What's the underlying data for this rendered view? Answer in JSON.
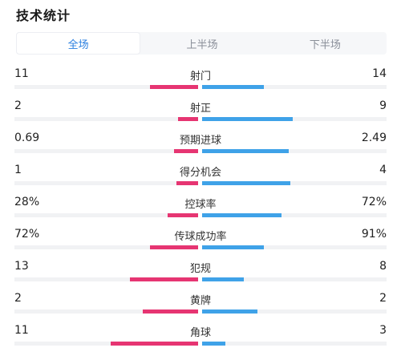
{
  "title": "技术统计",
  "tabs": [
    {
      "label": "全场",
      "active": true
    },
    {
      "label": "上半场",
      "active": false
    },
    {
      "label": "下半场",
      "active": false
    }
  ],
  "colors": {
    "home": "#e63572",
    "away": "#3fa2e8",
    "active_tab": "#2a7fe0"
  },
  "stats": [
    {
      "label": "射门",
      "home": "11",
      "away": "14",
      "home_pct": 0.44,
      "away_pct": 0.56
    },
    {
      "label": "射正",
      "home": "2",
      "away": "9",
      "home_pct": 0.18,
      "away_pct": 0.82
    },
    {
      "label": "预期进球",
      "home": "0.69",
      "away": "2.49",
      "home_pct": 0.22,
      "away_pct": 0.78
    },
    {
      "label": "得分机会",
      "home": "1",
      "away": "4",
      "home_pct": 0.2,
      "away_pct": 0.8
    },
    {
      "label": "控球率",
      "home": "28%",
      "away": "72%",
      "home_pct": 0.28,
      "away_pct": 0.72
    },
    {
      "label": "传球成功率",
      "home": "72%",
      "away": "91%",
      "home_pct": 0.44,
      "away_pct": 0.56
    },
    {
      "label": "犯规",
      "home": "13",
      "away": "8",
      "home_pct": 0.62,
      "away_pct": 0.38
    },
    {
      "label": "黄牌",
      "home": "2",
      "away": "2",
      "home_pct": 0.5,
      "away_pct": 0.5
    },
    {
      "label": "角球",
      "home": "11",
      "away": "3",
      "home_pct": 0.79,
      "away_pct": 0.21
    }
  ]
}
